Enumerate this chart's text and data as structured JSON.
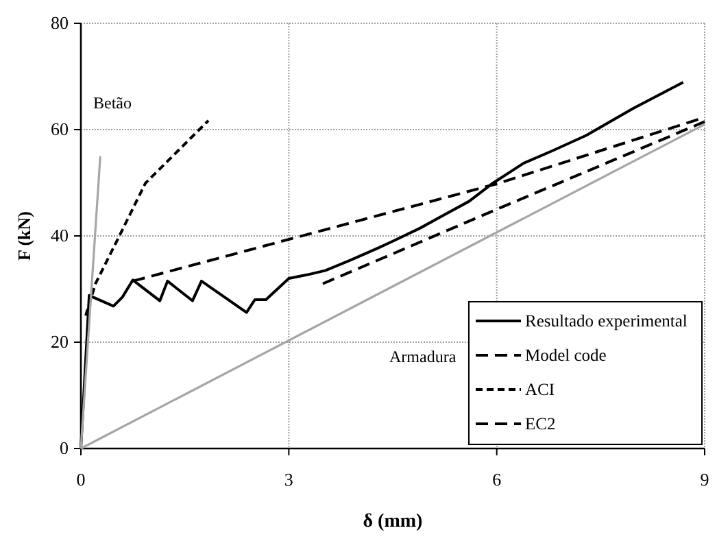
{
  "chart_data": {
    "type": "line",
    "xlabel": "δ (mm)",
    "ylabel": "F (kN)",
    "xlim": [
      0,
      9
    ],
    "ylim": [
      0,
      80
    ],
    "xticks": [
      0,
      3,
      6,
      9
    ],
    "yticks": [
      0,
      20,
      40,
      60,
      80
    ],
    "grid": true,
    "legend": "bottom right",
    "marker": "none",
    "series": [
      {
        "name": "Resultado experimental",
        "color": "#000000",
        "line_style": "solid",
        "x": [
          0,
          0.12,
          0.47,
          0.6,
          0.75,
          1.14,
          1.25,
          1.61,
          1.74,
          2.39,
          2.51,
          2.67,
          3.0,
          3.27,
          3.53,
          3.9,
          4.3,
          4.5,
          4.9,
          5.22,
          5.6,
          5.93,
          6.39,
          6.8,
          7.29,
          7.97,
          8.69
        ],
        "values": [
          0,
          28.8,
          26.8,
          28.5,
          31.7,
          27.8,
          31.5,
          27.8,
          31.5,
          25.6,
          28,
          28,
          32,
          32.7,
          33.5,
          35.5,
          37.8,
          39,
          41.5,
          43.8,
          46.5,
          49.8,
          53.7,
          56,
          58.9,
          64,
          68.9
        ]
      },
      {
        "name": "Model code",
        "color": "#000000",
        "line_style": "dashed",
        "x": [
          3.49,
          6,
          9
        ],
        "values": [
          31,
          45,
          61.5
        ]
      },
      {
        "name": "ACI",
        "color": "#000000",
        "line_style": "dotted",
        "x": [
          0.07,
          0.21,
          0.54,
          0.93,
          1.4,
          1.84
        ],
        "values": [
          25,
          31,
          39.6,
          49.9,
          56,
          61.7
        ]
      },
      {
        "name": "EC2",
        "color": "#000000",
        "line_style": "dashed",
        "x": [
          0.75,
          6,
          9
        ],
        "values": [
          31.5,
          49.8,
          62.3
        ]
      },
      {
        "color": "#a6a6a6",
        "line_style": "solid",
        "x": [
          0,
          0.28
        ],
        "values": [
          0,
          55
        ]
      },
      {
        "color": "#a6a6a6",
        "line_style": "solid",
        "x": [
          0,
          9
        ],
        "values": [
          0,
          61
        ]
      }
    ],
    "annotations": [
      "Betão",
      "Armadura"
    ]
  }
}
